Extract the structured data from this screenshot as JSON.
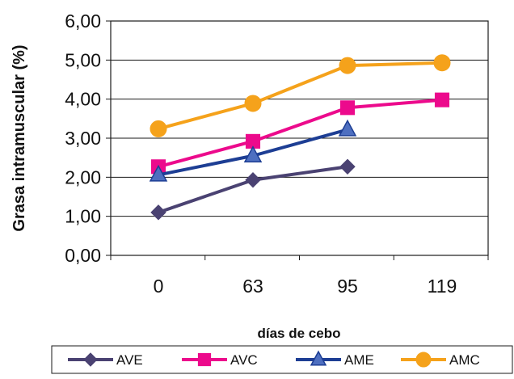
{
  "chart_data": {
    "type": "line",
    "title": "",
    "xlabel": "días de cebo",
    "ylabel": "Grasa intramuscular (%)",
    "categories": [
      "0",
      "63",
      "95",
      "119"
    ],
    "ylim": [
      0,
      6
    ],
    "y_ticks": [
      "0,00",
      "1,00",
      "2,00",
      "3,00",
      "4,00",
      "5,00",
      "6,00"
    ],
    "grid": true,
    "legend_position": "bottom",
    "series": [
      {
        "name": "AVE",
        "values": [
          1.1,
          1.93,
          2.27,
          null
        ],
        "color": "#4a4272",
        "marker": "diamond"
      },
      {
        "name": "AVC",
        "values": [
          2.27,
          2.92,
          3.78,
          3.98
        ],
        "color": "#ec0a8c",
        "marker": "square"
      },
      {
        "name": "AME",
        "values": [
          2.06,
          2.55,
          3.22,
          null
        ],
        "color": "#1d3e94",
        "marker": "triangle"
      },
      {
        "name": "AMC",
        "values": [
          3.24,
          3.89,
          4.86,
          4.93
        ],
        "color": "#f5a21b",
        "marker": "circle"
      }
    ]
  }
}
